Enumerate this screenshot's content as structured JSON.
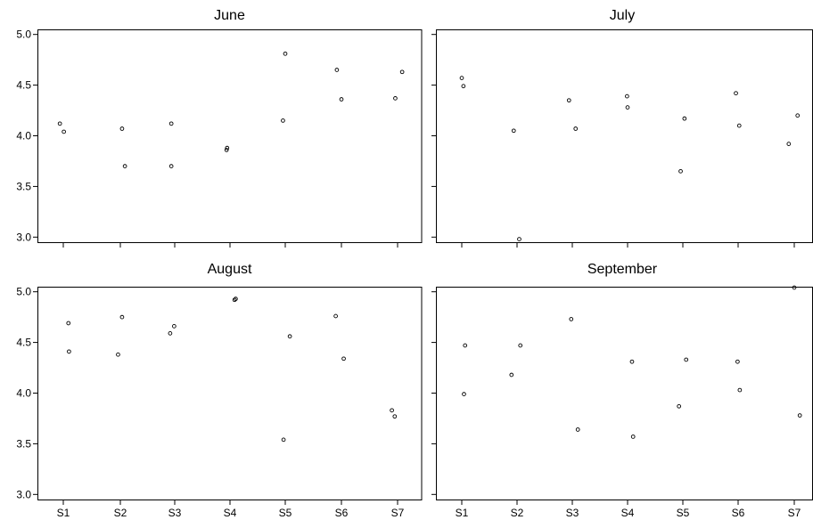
{
  "chart_data": [
    {
      "type": "scatter",
      "title": "June",
      "categories": [
        "S1",
        "S2",
        "S3",
        "S4",
        "S5",
        "S6",
        "S7"
      ],
      "ylim": [
        2.95,
        5.05
      ],
      "yticks": [
        3.0,
        3.5,
        4.0,
        4.5,
        5.0
      ],
      "show_x_tick_labels": false,
      "show_y_tick_labels": true,
      "points": [
        {
          "x": "S1",
          "offset": -0.06,
          "y": 4.12
        },
        {
          "x": "S1",
          "offset": 0.01,
          "y": 4.04
        },
        {
          "x": "S2",
          "offset": 0.03,
          "y": 4.07
        },
        {
          "x": "S2",
          "offset": 0.08,
          "y": 3.7
        },
        {
          "x": "S3",
          "offset": -0.06,
          "y": 4.12
        },
        {
          "x": "S3",
          "offset": -0.06,
          "y": 3.7
        },
        {
          "x": "S4",
          "offset": -0.06,
          "y": 3.86
        },
        {
          "x": "S4",
          "offset": -0.05,
          "y": 3.88
        },
        {
          "x": "S5",
          "offset": -0.04,
          "y": 4.15
        },
        {
          "x": "S5",
          "offset": 0.0,
          "y": 4.81
        },
        {
          "x": "S6",
          "offset": -0.08,
          "y": 4.65
        },
        {
          "x": "S6",
          "offset": 0.0,
          "y": 4.36
        },
        {
          "x": "S7",
          "offset": -0.04,
          "y": 4.37
        },
        {
          "x": "S7",
          "offset": 0.08,
          "y": 4.63
        }
      ]
    },
    {
      "type": "scatter",
      "title": "July",
      "categories": [
        "S1",
        "S2",
        "S3",
        "S4",
        "S5",
        "S6",
        "S7"
      ],
      "ylim": [
        2.95,
        5.05
      ],
      "yticks": [
        3.0,
        3.5,
        4.0,
        4.5,
        5.0
      ],
      "show_x_tick_labels": false,
      "show_y_tick_labels": false,
      "points": [
        {
          "x": "S1",
          "offset": 0.0,
          "y": 4.57
        },
        {
          "x": "S1",
          "offset": 0.03,
          "y": 4.49
        },
        {
          "x": "S2",
          "offset": -0.06,
          "y": 4.05
        },
        {
          "x": "S2",
          "offset": 0.04,
          "y": 2.98
        },
        {
          "x": "S3",
          "offset": -0.06,
          "y": 4.35
        },
        {
          "x": "S3",
          "offset": 0.06,
          "y": 4.07
        },
        {
          "x": "S4",
          "offset": -0.01,
          "y": 4.39
        },
        {
          "x": "S4",
          "offset": 0.0,
          "y": 4.28
        },
        {
          "x": "S5",
          "offset": -0.04,
          "y": 3.65
        },
        {
          "x": "S5",
          "offset": 0.03,
          "y": 4.17
        },
        {
          "x": "S6",
          "offset": -0.04,
          "y": 4.42
        },
        {
          "x": "S6",
          "offset": 0.02,
          "y": 4.1
        },
        {
          "x": "S7",
          "offset": -0.1,
          "y": 3.92
        },
        {
          "x": "S7",
          "offset": 0.06,
          "y": 4.2
        }
      ]
    },
    {
      "type": "scatter",
      "title": "August",
      "categories": [
        "S1",
        "S2",
        "S3",
        "S4",
        "S5",
        "S6",
        "S7"
      ],
      "ylim": [
        2.95,
        5.05
      ],
      "yticks": [
        3.0,
        3.5,
        4.0,
        4.5,
        5.0
      ],
      "show_x_tick_labels": true,
      "show_y_tick_labels": true,
      "points": [
        {
          "x": "S1",
          "offset": 0.09,
          "y": 4.69
        },
        {
          "x": "S1",
          "offset": 0.1,
          "y": 4.41
        },
        {
          "x": "S2",
          "offset": 0.03,
          "y": 4.75
        },
        {
          "x": "S2",
          "offset": -0.04,
          "y": 4.38
        },
        {
          "x": "S3",
          "offset": -0.08,
          "y": 4.59
        },
        {
          "x": "S3",
          "offset": -0.01,
          "y": 4.66
        },
        {
          "x": "S4",
          "offset": 0.08,
          "y": 4.92
        },
        {
          "x": "S4",
          "offset": 0.1,
          "y": 4.93
        },
        {
          "x": "S5",
          "offset": 0.08,
          "y": 4.56
        },
        {
          "x": "S5",
          "offset": -0.03,
          "y": 3.54
        },
        {
          "x": "S6",
          "offset": -0.1,
          "y": 4.76
        },
        {
          "x": "S6",
          "offset": 0.04,
          "y": 4.34
        },
        {
          "x": "S7",
          "offset": -0.1,
          "y": 3.83
        },
        {
          "x": "S7",
          "offset": -0.05,
          "y": 3.77
        }
      ]
    },
    {
      "type": "scatter",
      "title": "September",
      "categories": [
        "S1",
        "S2",
        "S3",
        "S4",
        "S5",
        "S6",
        "S7"
      ],
      "ylim": [
        2.95,
        5.05
      ],
      "yticks": [
        3.0,
        3.5,
        4.0,
        4.5,
        5.0
      ],
      "show_x_tick_labels": true,
      "show_y_tick_labels": false,
      "points": [
        {
          "x": "S1",
          "offset": 0.06,
          "y": 4.47
        },
        {
          "x": "S1",
          "offset": 0.04,
          "y": 3.99
        },
        {
          "x": "S2",
          "offset": -0.1,
          "y": 4.18
        },
        {
          "x": "S2",
          "offset": 0.06,
          "y": 4.47
        },
        {
          "x": "S3",
          "offset": -0.02,
          "y": 4.73
        },
        {
          "x": "S3",
          "offset": 0.1,
          "y": 3.64
        },
        {
          "x": "S4",
          "offset": 0.08,
          "y": 4.31
        },
        {
          "x": "S4",
          "offset": 0.1,
          "y": 3.57
        },
        {
          "x": "S5",
          "offset": -0.07,
          "y": 3.87
        },
        {
          "x": "S5",
          "offset": 0.06,
          "y": 4.33
        },
        {
          "x": "S6",
          "offset": -0.01,
          "y": 4.31
        },
        {
          "x": "S6",
          "offset": 0.03,
          "y": 4.03
        },
        {
          "x": "S7",
          "offset": 0.0,
          "y": 5.07
        },
        {
          "x": "S7",
          "offset": 0.1,
          "y": 3.78
        }
      ]
    }
  ]
}
